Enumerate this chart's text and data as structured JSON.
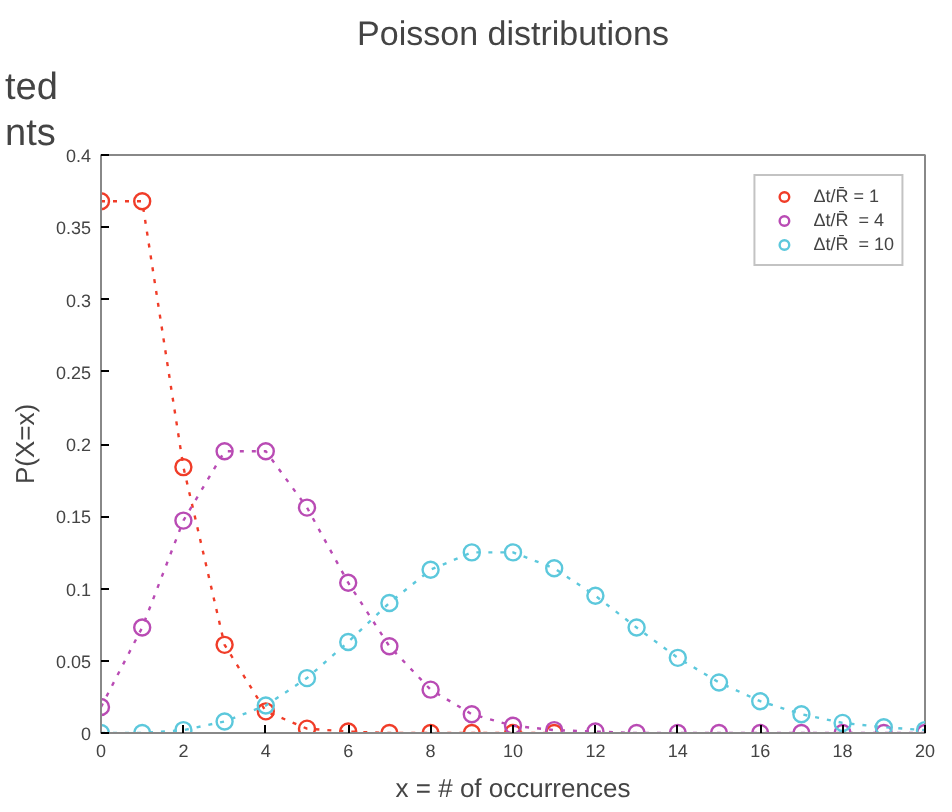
{
  "chart_data": {
    "type": "line",
    "title": "Poisson distributions",
    "xlabel": "x = # of occurrences",
    "ylabel": "P(X=x)",
    "annotations": [
      "nts",
      "ted"
    ],
    "series": [
      {
        "name": "Δt/R̄ = 1",
        "color": "#f03c28",
        "x": [
          0,
          1,
          2,
          3,
          4,
          5,
          6,
          7,
          8,
          9,
          10,
          11
        ],
        "values": [
          0.368,
          0.368,
          0.184,
          0.061,
          0.015,
          0.003,
          0.001,
          0,
          0,
          0,
          0,
          0
        ]
      },
      {
        "name": "Δt/R̄  = 4",
        "color": "#b94bb4",
        "x": [
          0,
          1,
          2,
          3,
          4,
          5,
          6,
          7,
          8,
          9,
          10,
          11,
          12,
          13,
          14,
          15,
          16,
          17,
          18,
          19,
          20
        ],
        "values": [
          0.018,
          0.073,
          0.147,
          0.195,
          0.195,
          0.156,
          0.104,
          0.06,
          0.03,
          0.013,
          0.005,
          0.002,
          0.001,
          0,
          0,
          0,
          0,
          0,
          0,
          0,
          0
        ]
      },
      {
        "name": "Δt/R̄  = 10",
        "color": "#5cc8dc",
        "x": [
          0,
          1,
          2,
          3,
          4,
          5,
          6,
          7,
          8,
          9,
          10,
          11,
          12,
          13,
          14,
          15,
          16,
          17,
          18,
          19,
          20
        ],
        "values": [
          0,
          0,
          0.002,
          0.008,
          0.019,
          0.038,
          0.063,
          0.09,
          0.113,
          0.125,
          0.125,
          0.114,
          0.095,
          0.073,
          0.052,
          0.035,
          0.022,
          0.013,
          0.007,
          0.004,
          0.002
        ]
      }
    ],
    "xlim": [
      0,
      20
    ],
    "ylim": [
      0,
      0.4
    ],
    "xticks": [
      0,
      2,
      4,
      6,
      8,
      10,
      12,
      14,
      16,
      18,
      20
    ],
    "yticks": [
      0,
      0.05,
      0.1,
      0.15,
      0.2,
      0.25,
      0.3,
      0.35,
      0.4
    ],
    "grid": false,
    "legend": "top right",
    "marker": "circle",
    "line_style": "dotted"
  }
}
